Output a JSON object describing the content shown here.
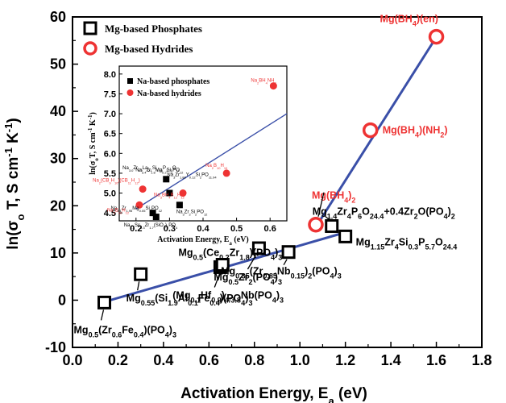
{
  "chart_data": [
    {
      "type": "scatter",
      "xlabel": "Activation Energy, E",
      "xlabel_sub": "a",
      "xlabel_unit": " (eV)",
      "ylabel": "ln(σ",
      "ylabel_sub": "o",
      "ylabel_rest": " T, S cm",
      "ylabel_sup1": "-1",
      "ylabel_k": " K",
      "ylabel_sup2": "-1",
      "ylabel_close": ")",
      "xlim": [
        0.0,
        1.8
      ],
      "ylim": [
        -10,
        60
      ],
      "xticks": [
        "0.0",
        "0.2",
        "0.4",
        "0.6",
        "0.8",
        "1.0",
        "1.2",
        "1.4",
        "1.6",
        "1.8"
      ],
      "yticks": [
        "-10",
        "0",
        "10",
        "20",
        "30",
        "40",
        "50",
        "60"
      ],
      "legend_position": "top-left",
      "series": [
        {
          "name": "Mg-based Phosphates",
          "marker": "open-square",
          "color": "#000000",
          "points": [
            {
              "x": 0.14,
              "y": -0.5,
              "label": "Mg0.5(Zr0.6Fe0.4)(PO4)3"
            },
            {
              "x": 0.3,
              "y": 5.5,
              "label": "Mg0.55(Si1.9Al0.1Fe0.4)(PO4)3"
            },
            {
              "x": 0.65,
              "y": 7.0,
              "label": "Mg0.5(Ce0.2Zr1.8)(PO4)3"
            },
            {
              "x": 0.66,
              "y": 7.5,
              "label": "(Mg0.1Hf0.9)4/3.8Nb(PO4)3"
            },
            {
              "x": 0.82,
              "y": 11.0,
              "label": "Mg0.5Zr2(PO4)3"
            },
            {
              "x": 0.95,
              "y": 10.2,
              "label": "Mg0.35(Zr0.85Nb0.15)2(PO4)3"
            },
            {
              "x": 1.14,
              "y": 15.7,
              "label": "Mg1.4Zr4P6O24.4+0.4Zr2O(PO4)2"
            },
            {
              "x": 1.2,
              "y": 13.5,
              "label": "Mg1.15Zr4Si0.3P5.7O24.4"
            }
          ]
        },
        {
          "name": "Mg-based Hydrides",
          "marker": "open-circle",
          "color": "#ee3333",
          "points": [
            {
              "x": 1.07,
              "y": 16.0,
              "label": "Mg(BH4)2"
            },
            {
              "x": 1.31,
              "y": 36.0,
              "label": "Mg(BH4)(NH2)"
            },
            {
              "x": 1.6,
              "y": 55.8,
              "label": "Mg(BH4)(en)"
            }
          ]
        }
      ],
      "fit_lines": [
        {
          "color": "#3a4fa8",
          "x": [
            0.13,
            1.21
          ],
          "y": [
            -0.5,
            14.5
          ]
        },
        {
          "color": "#3a4fa8",
          "x": [
            1.07,
            1.61
          ],
          "y": [
            15.5,
            56.5
          ]
        }
      ]
    },
    {
      "type": "scatter",
      "xlabel": "Activation Energy, E",
      "xlabel_sub": "a",
      "xlabel_unit": " (eV)",
      "ylabel": "ln(σ",
      "ylabel_sub": "o",
      "ylabel_rest": "T, S cm",
      "ylabel_sup1": "-1",
      "ylabel_k": " K",
      "ylabel_sup2": "-1",
      "ylabel_close": ")",
      "xlim": [
        0.15,
        0.65
      ],
      "ylim": [
        4.3,
        8.2
      ],
      "xticks": [
        "0.2",
        "0.3",
        "0.4",
        "0.5",
        "0.6"
      ],
      "yticks": [
        "4.5",
        "5.0",
        "5.5",
        "6.0",
        "6.5",
        "7.0",
        "7.5",
        "8.0"
      ],
      "legend_position": "top-left",
      "series": [
        {
          "name": "Na-based phosphates",
          "marker": "filled-square",
          "color": "#000000",
          "points": [
            {
              "x": 0.29,
              "y": 5.35,
              "label": "Na3.4Zr1.8Mg0.2Si2PO12"
            },
            {
              "x": 0.3,
              "y": 5.0,
              "label": "Na3Zr1.88Y0.12Si2PO11.94"
            },
            {
              "x": 0.25,
              "y": 4.5,
              "label": "Na3.1Zr1.95Mg0.05Si2PO12"
            },
            {
              "x": 0.26,
              "y": 4.4,
              "label": "Na3.3Sc0.3Zr1.7(SiO4)2PO4"
            },
            {
              "x": 0.33,
              "y": 4.7,
              "label": "Na3Zr2Si2PO12"
            }
          ]
        },
        {
          "name": "Na-based hydrides",
          "marker": "filled-circle",
          "color": "#ee3333",
          "points": [
            {
              "x": 0.61,
              "y": 7.7,
              "label": "Na2BH4NH2"
            },
            {
              "x": 0.47,
              "y": 5.5,
              "label": "Na2B10H10"
            },
            {
              "x": 0.34,
              "y": 5.0,
              "label": "Na3BH4B12H12"
            },
            {
              "x": 0.22,
              "y": 5.1,
              "label": "Na2(CB9H10)(CB11H12)"
            },
            {
              "x": 0.21,
              "y": 4.7,
              "label": "Na2B12H12"
            }
          ]
        }
      ],
      "annotations": [
        {
          "text": "Na3.4Zr1.8Mg0.2Si2PO12"
        },
        {
          "text": "Na3.0Zr1.9La0.1Si1.95P1.05O12"
        }
      ],
      "fit_line": {
        "color": "#3a4fa8",
        "x": [
          0.2,
          0.65
        ],
        "y": [
          4.6,
          7.0
        ]
      }
    }
  ]
}
